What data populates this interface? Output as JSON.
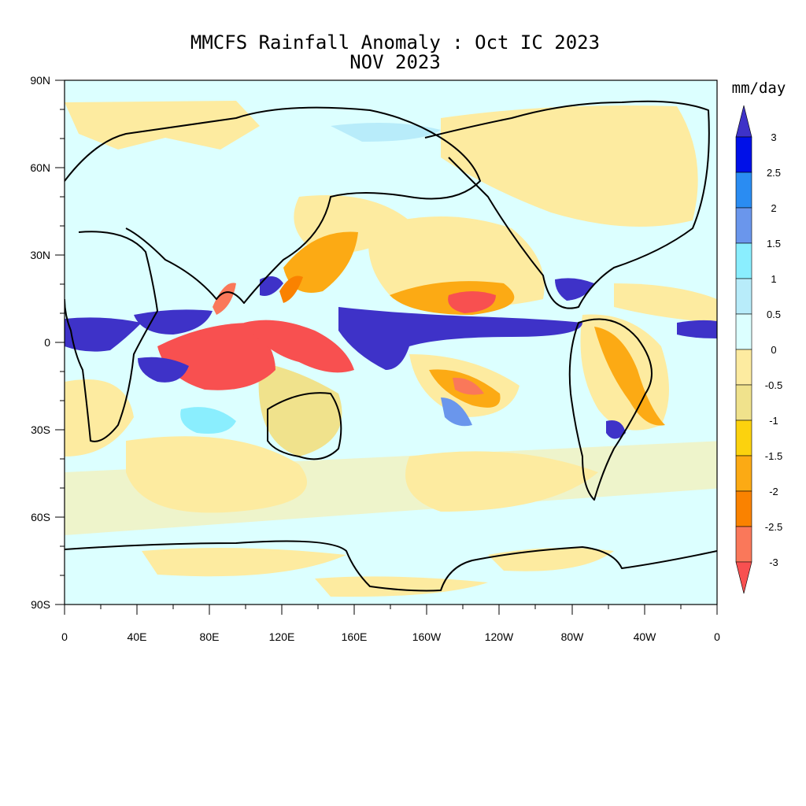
{
  "title": "MMCFS Rainfall Anomaly : Oct IC 2023",
  "subtitle": "NOV 2023",
  "colorbar": {
    "unit": "mm/day",
    "labels": [
      "3",
      "2.5",
      "2",
      "1.5",
      "1",
      "0.5",
      "0",
      "-0.5",
      "-1",
      "-1.5",
      "-2",
      "-2.5",
      "-3"
    ],
    "colors": [
      "#3e32c8",
      "#0010e8",
      "#2a8cf2",
      "#6a96ec",
      "#8aeefe",
      "#b8ecfa",
      "#dcffff",
      "#fdeba0",
      "#f0e28c",
      "#fcd20e",
      "#fcaa14",
      "#fa8200",
      "#fa785a",
      "#f85050"
    ]
  },
  "axes": {
    "y_ticks": [
      "90N",
      "60N",
      "30N",
      "0",
      "30S",
      "60S",
      "90S"
    ],
    "x_ticks": [
      "0",
      "40E",
      "80E",
      "120E",
      "160E",
      "160W",
      "120W",
      "80W",
      "40W",
      "0"
    ]
  }
}
